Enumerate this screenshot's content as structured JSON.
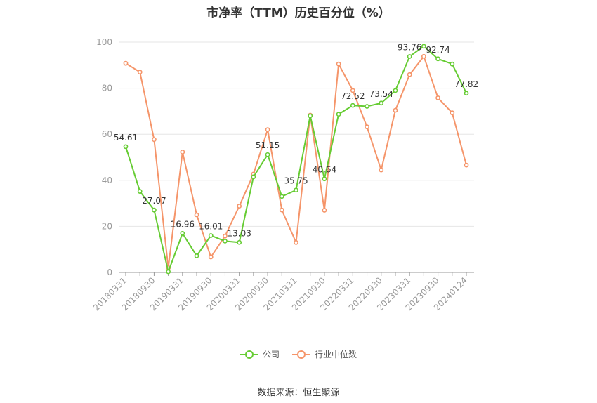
{
  "chart_data": {
    "type": "line",
    "title": "市净率（TTM）历史百分位（%）",
    "ylim": [
      0,
      100
    ],
    "y_ticks": [
      0,
      20,
      40,
      60,
      80,
      100
    ],
    "grid": true,
    "legend_position": "bottom",
    "x_tick_labels": [
      "20180331",
      "20180930",
      "20190331",
      "20190930",
      "20200331",
      "20200930",
      "20210331",
      "20210930",
      "20220331",
      "20220930",
      "20230331",
      "20230930",
      "20240124"
    ],
    "x": [
      "20180331",
      "20180630",
      "20180930",
      "20181231",
      "20190331",
      "20190630",
      "20190930",
      "20191231",
      "20200331",
      "20200630",
      "20200930",
      "20201231",
      "20210331",
      "20210630",
      "20210930",
      "20211231",
      "20220331",
      "20220630",
      "20220930",
      "20221231",
      "20230331",
      "20230630",
      "20230930",
      "20231231",
      "20240124"
    ],
    "series": [
      {
        "name": "公司",
        "color": "#66cc33",
        "values": [
          54.61,
          35.2,
          27.07,
          0.3,
          16.96,
          7.2,
          16.01,
          13.6,
          13.03,
          41.5,
          51.15,
          33.0,
          35.75,
          68.0,
          40.64,
          68.7,
          72.52,
          72.1,
          73.54,
          79.0,
          93.76,
          98.2,
          92.74,
          90.5,
          77.82
        ],
        "data_labels": {
          "0": "54.61",
          "2": "27.07",
          "4": "16.96",
          "6": "16.01",
          "8": "13.03",
          "10": "51.15",
          "12": "35.75",
          "14": "40.64",
          "16": "72.52",
          "18": "73.54",
          "20": "93.76",
          "22": "92.74",
          "24": "77.82"
        }
      },
      {
        "name": "行业中位数",
        "color": "#f5956a",
        "values": [
          90.8,
          87.0,
          57.7,
          2.0,
          52.3,
          25.0,
          6.7,
          15.8,
          28.8,
          42.7,
          62.0,
          27.1,
          13.0,
          68.3,
          27.0,
          90.5,
          79.0,
          63.2,
          44.5,
          70.4,
          85.9,
          93.8,
          75.8,
          69.3,
          46.6
        ]
      }
    ]
  },
  "legend": {
    "company": "公司",
    "industry": "行业中位数"
  },
  "source": "数据来源：恒生聚源"
}
